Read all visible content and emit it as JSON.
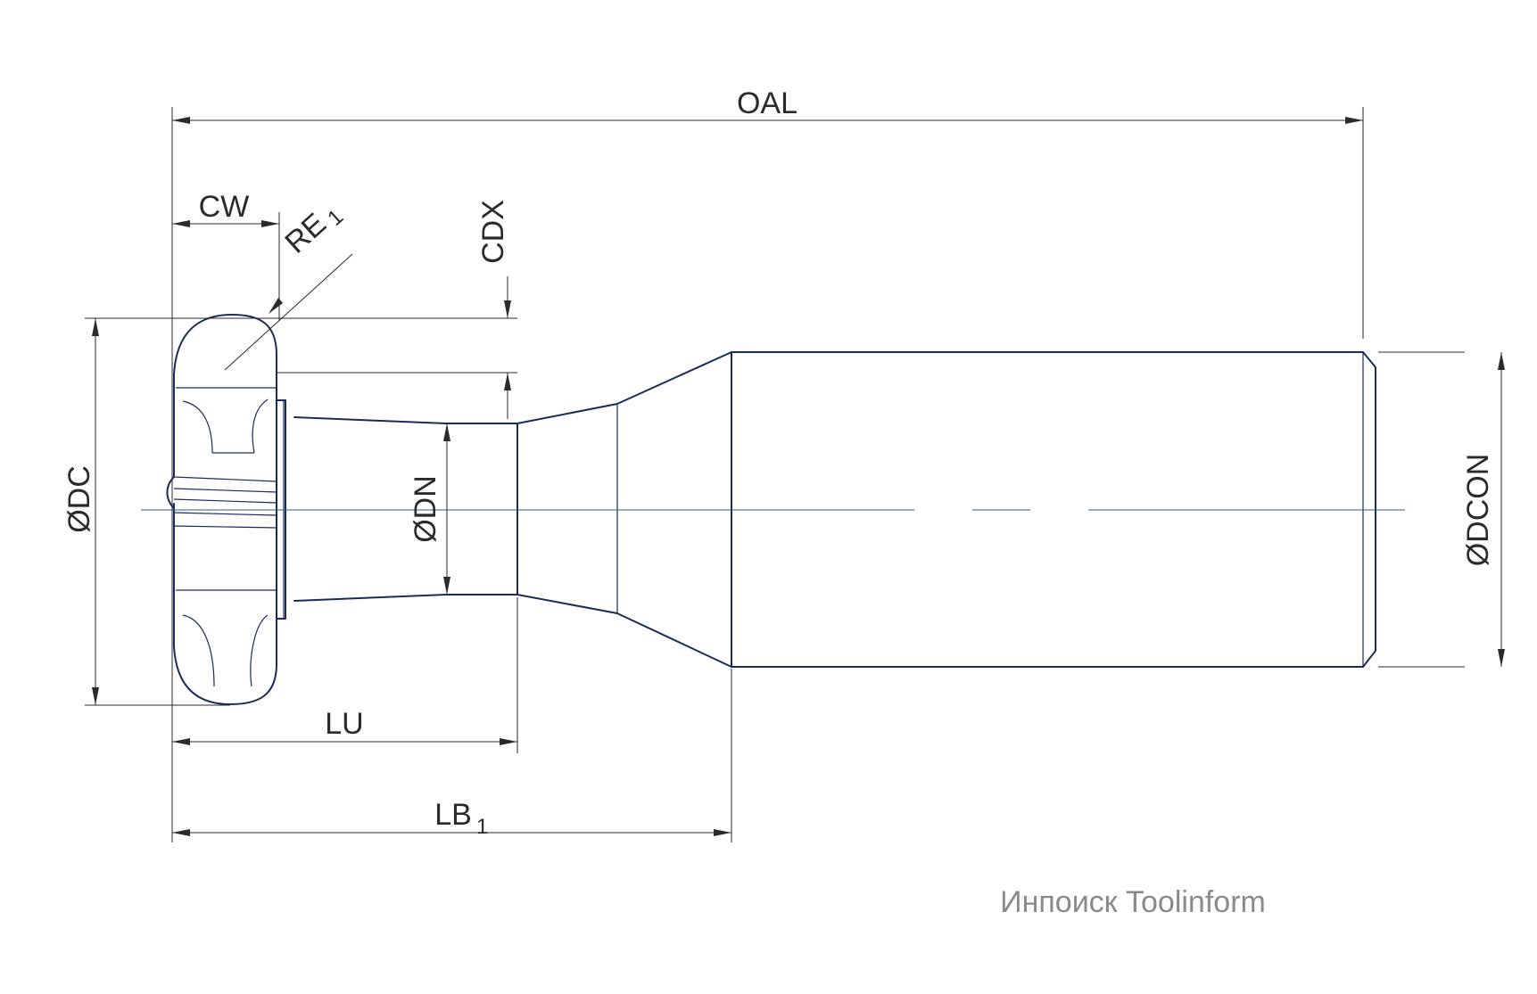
{
  "labels": {
    "oal": "OAL",
    "cw": "CW",
    "re_main": "RE",
    "re_sub": "1",
    "cdx": "CDX",
    "dc": "ØDC",
    "dn": "ØDN",
    "dcon": "ØDCON",
    "lu": "LU",
    "lb_main": "LB",
    "lb_sub": "1"
  },
  "watermark": "Инпоиск Toolinform",
  "colors": {
    "outline": "#1b2a5c",
    "dimension": "#2a2a2a",
    "centerline": "#2f5f6a",
    "watermark": "#8a8a8a"
  }
}
